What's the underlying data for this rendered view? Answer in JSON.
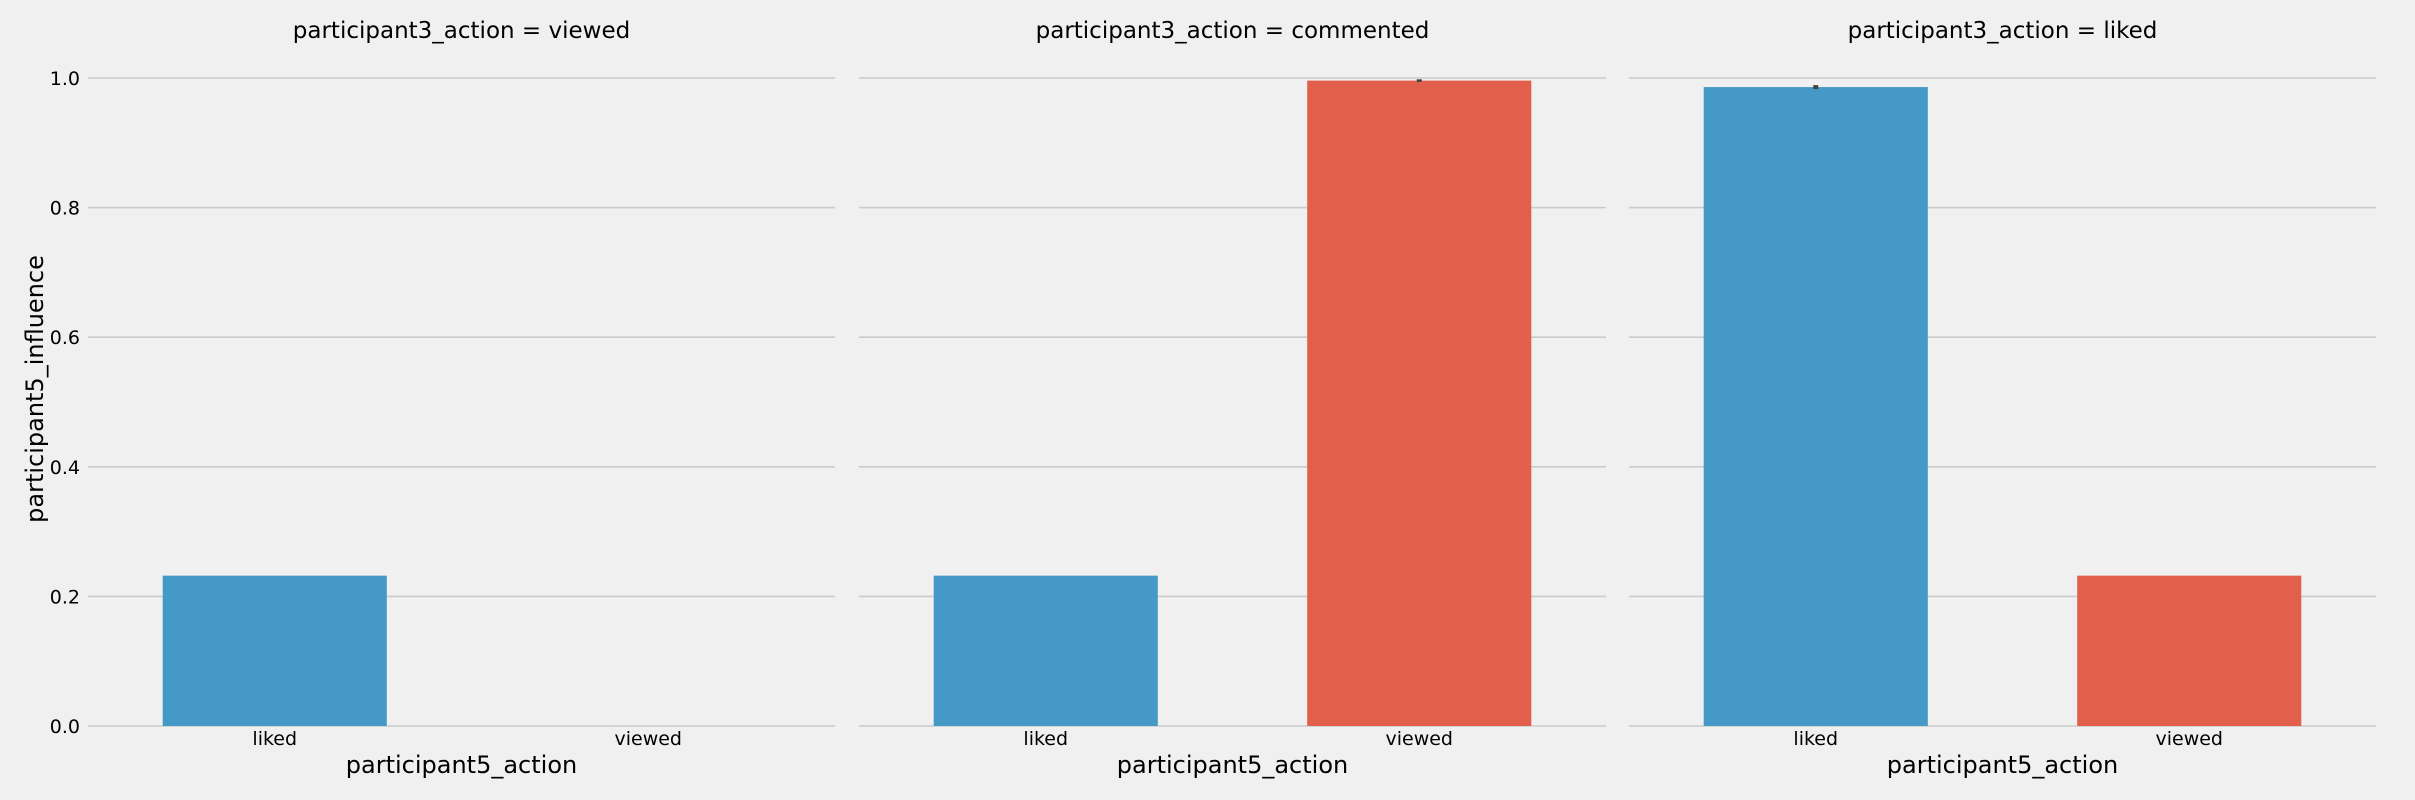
{
  "chart_data": {
    "type": "bar",
    "facet_by": "participant3_action",
    "xlabel": "participant5_action",
    "ylabel": "participant5_influence",
    "ylim": [
      0,
      1.0
    ],
    "yticks": [
      "0.0",
      "0.2",
      "0.4",
      "0.6",
      "0.8",
      "1.0"
    ],
    "categories": [
      "liked",
      "viewed"
    ],
    "grid": true,
    "colors": {
      "liked": "#4499c7",
      "viewed": "#e2604b",
      "errorbar": "#424242"
    },
    "panels": [
      {
        "title": "participant3_action = viewed",
        "bars": [
          {
            "category": "liked",
            "value": 0.232,
            "ci": null
          },
          {
            "category": "viewed",
            "value": null,
            "ci": null
          }
        ]
      },
      {
        "title": "participant3_action = commented",
        "bars": [
          {
            "category": "liked",
            "value": 0.232,
            "ci": null
          },
          {
            "category": "viewed",
            "value": 0.996,
            "ci": [
              0.994,
              0.998
            ]
          }
        ]
      },
      {
        "title": "participant3_action = liked",
        "bars": [
          {
            "category": "liked",
            "value": 0.986,
            "ci": [
              0.983,
              0.989
            ]
          },
          {
            "category": "viewed",
            "value": 0.232,
            "ci": null
          }
        ]
      }
    ]
  }
}
